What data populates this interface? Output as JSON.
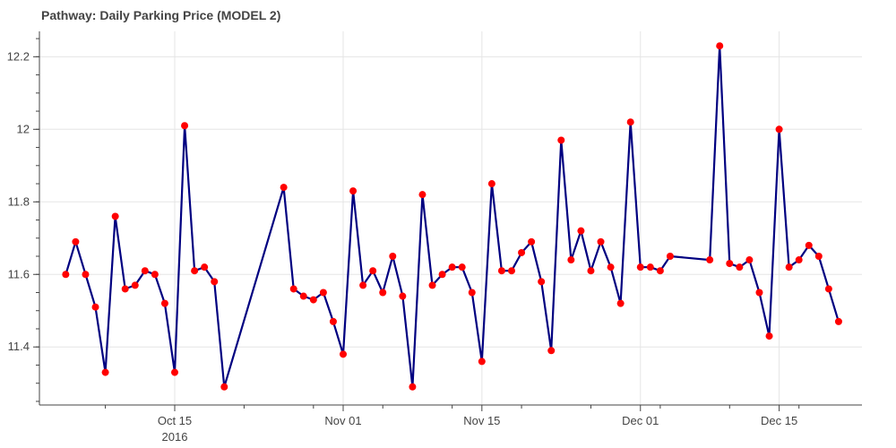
{
  "chart_data": {
    "type": "line",
    "title": "Pathway: Daily Parking Price (MODEL 2)",
    "xlabel": "",
    "ylabel": "",
    "ylim": [
      11.24,
      12.27
    ],
    "xlim": [
      "2016-10-04",
      "2016-12-31"
    ],
    "grid": true,
    "x_ticks": [
      {
        "date": "2016-10-15",
        "label": "Oct 15",
        "sublabel": "2016"
      },
      {
        "date": "2016-11-01",
        "label": "Nov 01",
        "sublabel": ""
      },
      {
        "date": "2016-11-15",
        "label": "Nov 15",
        "sublabel": ""
      },
      {
        "date": "2016-12-01",
        "label": "Dec 01",
        "sublabel": ""
      },
      {
        "date": "2016-12-15",
        "label": "Dec 15",
        "sublabel": ""
      }
    ],
    "y_ticks": [
      11.4,
      11.6,
      11.8,
      12.0,
      12.2
    ],
    "y_tick_labels": [
      "11.4",
      "11.6",
      "11.8",
      "12",
      "12.2"
    ],
    "line_color": "#000080",
    "marker_color": "#ff0000",
    "x": [
      "2016-10-04",
      "2016-10-05",
      "2016-10-06",
      "2016-10-07",
      "2016-10-08",
      "2016-10-09",
      "2016-10-10",
      "2016-10-11",
      "2016-10-12",
      "2016-10-13",
      "2016-10-14",
      "2016-10-15",
      "2016-10-16",
      "2016-10-17",
      "2016-10-18",
      "2016-10-19",
      "2016-10-20",
      "2016-10-26",
      "2016-10-27",
      "2016-10-28",
      "2016-10-29",
      "2016-10-30",
      "2016-10-31",
      "2016-11-01",
      "2016-11-02",
      "2016-11-03",
      "2016-11-04",
      "2016-11-05",
      "2016-11-06",
      "2016-11-07",
      "2016-11-08",
      "2016-11-09",
      "2016-11-10",
      "2016-11-11",
      "2016-11-12",
      "2016-11-13",
      "2016-11-14",
      "2016-11-15",
      "2016-11-16",
      "2016-11-17",
      "2016-11-18",
      "2016-11-19",
      "2016-11-20",
      "2016-11-21",
      "2016-11-22",
      "2016-11-23",
      "2016-11-24",
      "2016-11-25",
      "2016-11-26",
      "2016-11-27",
      "2016-11-28",
      "2016-11-29",
      "2016-11-30",
      "2016-12-01",
      "2016-12-02",
      "2016-12-03",
      "2016-12-04",
      "2016-12-08",
      "2016-12-09",
      "2016-12-10",
      "2016-12-11",
      "2016-12-12",
      "2016-12-13",
      "2016-12-14",
      "2016-12-15",
      "2016-12-16",
      "2016-12-17",
      "2016-12-18",
      "2016-12-19",
      "2016-12-20",
      "2016-12-21"
    ],
    "y": [
      11.6,
      11.69,
      11.6,
      11.51,
      11.33,
      11.76,
      11.56,
      11.57,
      11.61,
      11.6,
      11.52,
      11.33,
      12.01,
      11.61,
      11.62,
      11.58,
      11.29,
      11.84,
      11.56,
      11.54,
      11.53,
      11.55,
      11.47,
      11.38,
      11.83,
      11.57,
      11.61,
      11.55,
      11.65,
      11.54,
      11.29,
      11.82,
      11.57,
      11.6,
      11.62,
      11.62,
      11.55,
      11.36,
      11.85,
      11.61,
      11.61,
      11.66,
      11.69,
      11.58,
      11.39,
      11.97,
      11.64,
      11.72,
      11.61,
      11.69,
      11.62,
      11.52,
      12.02,
      11.62,
      11.62,
      11.61,
      11.65,
      11.64,
      12.23,
      11.63,
      11.62,
      11.64,
      11.55,
      11.43,
      12.0,
      11.62,
      11.64,
      11.68,
      11.65,
      11.56,
      11.47
    ]
  }
}
